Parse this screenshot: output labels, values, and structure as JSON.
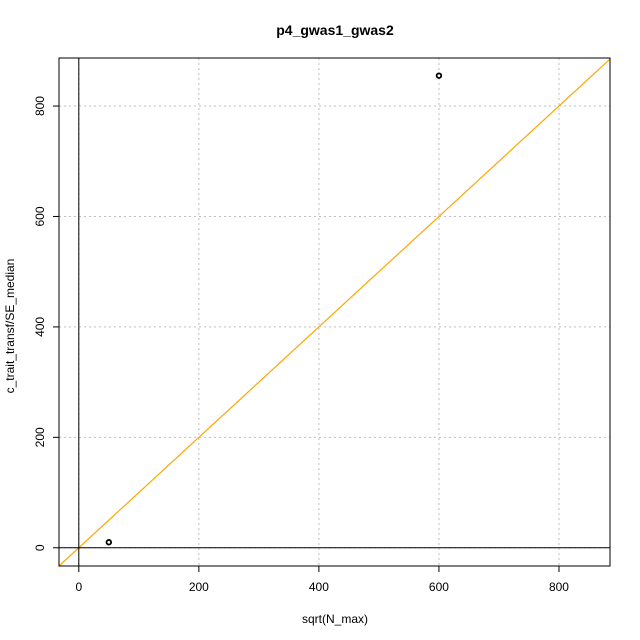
{
  "chart_data": {
    "type": "scatter",
    "title": "p4_gwas1_gwas2",
    "xlabel": "sqrt(N_max)",
    "ylabel": "c_trait_transf/SE_median",
    "xlim": [
      -33,
      885
    ],
    "ylim": [
      -33,
      887
    ],
    "x_ticks": [
      0,
      200,
      400,
      600,
      800
    ],
    "y_ticks": [
      0,
      200,
      400,
      600,
      800
    ],
    "x_tick_labels": [
      "0",
      "200",
      "400",
      "600",
      "800"
    ],
    "y_tick_labels": [
      "0",
      "200",
      "400",
      "600",
      "800"
    ],
    "grid": true,
    "points": [
      {
        "x": 50,
        "y": 10
      },
      {
        "x": 600,
        "y": 855
      }
    ],
    "reference_lines": [
      {
        "type": "abline",
        "intercept": 0,
        "slope": 1,
        "color": "#FFA500"
      },
      {
        "type": "hline",
        "y": 0,
        "color": "#000000"
      },
      {
        "type": "vline",
        "x": 0,
        "color": "#000000"
      }
    ],
    "colors": {
      "points": "#000000",
      "identity_line": "#FFA500",
      "grid": "#BEBEBE"
    }
  }
}
